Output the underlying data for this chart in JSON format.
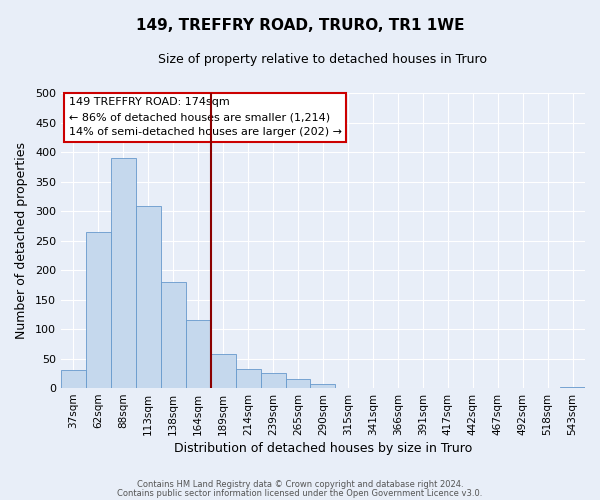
{
  "title": "149, TREFFRY ROAD, TRURO, TR1 1WE",
  "subtitle": "Size of property relative to detached houses in Truro",
  "xlabel": "Distribution of detached houses by size in Truro",
  "ylabel": "Number of detached properties",
  "bin_labels": [
    "37sqm",
    "62sqm",
    "88sqm",
    "113sqm",
    "138sqm",
    "164sqm",
    "189sqm",
    "214sqm",
    "239sqm",
    "265sqm",
    "290sqm",
    "315sqm",
    "341sqm",
    "366sqm",
    "391sqm",
    "417sqm",
    "442sqm",
    "467sqm",
    "492sqm",
    "518sqm",
    "543sqm"
  ],
  "bar_heights": [
    30,
    265,
    390,
    308,
    180,
    115,
    58,
    32,
    25,
    15,
    7,
    0,
    0,
    0,
    0,
    0,
    0,
    0,
    0,
    0,
    2
  ],
  "bar_color": "#c5d8ed",
  "bar_edge_color": "#6699cc",
  "vline_color": "#8b0000",
  "ylim": [
    0,
    500
  ],
  "yticks": [
    0,
    50,
    100,
    150,
    200,
    250,
    300,
    350,
    400,
    450,
    500
  ],
  "annotation_title": "149 TREFFRY ROAD: 174sqm",
  "annotation_line1": "← 86% of detached houses are smaller (1,214)",
  "annotation_line2": "14% of semi-detached houses are larger (202) →",
  "annotation_box_facecolor": "#ffffff",
  "annotation_box_edgecolor": "#cc0000",
  "footer_line1": "Contains HM Land Registry data © Crown copyright and database right 2024.",
  "footer_line2": "Contains public sector information licensed under the Open Government Licence v3.0.",
  "bg_color": "#e8eef8",
  "grid_color": "#ffffff",
  "title_fontsize": 11,
  "subtitle_fontsize": 9
}
